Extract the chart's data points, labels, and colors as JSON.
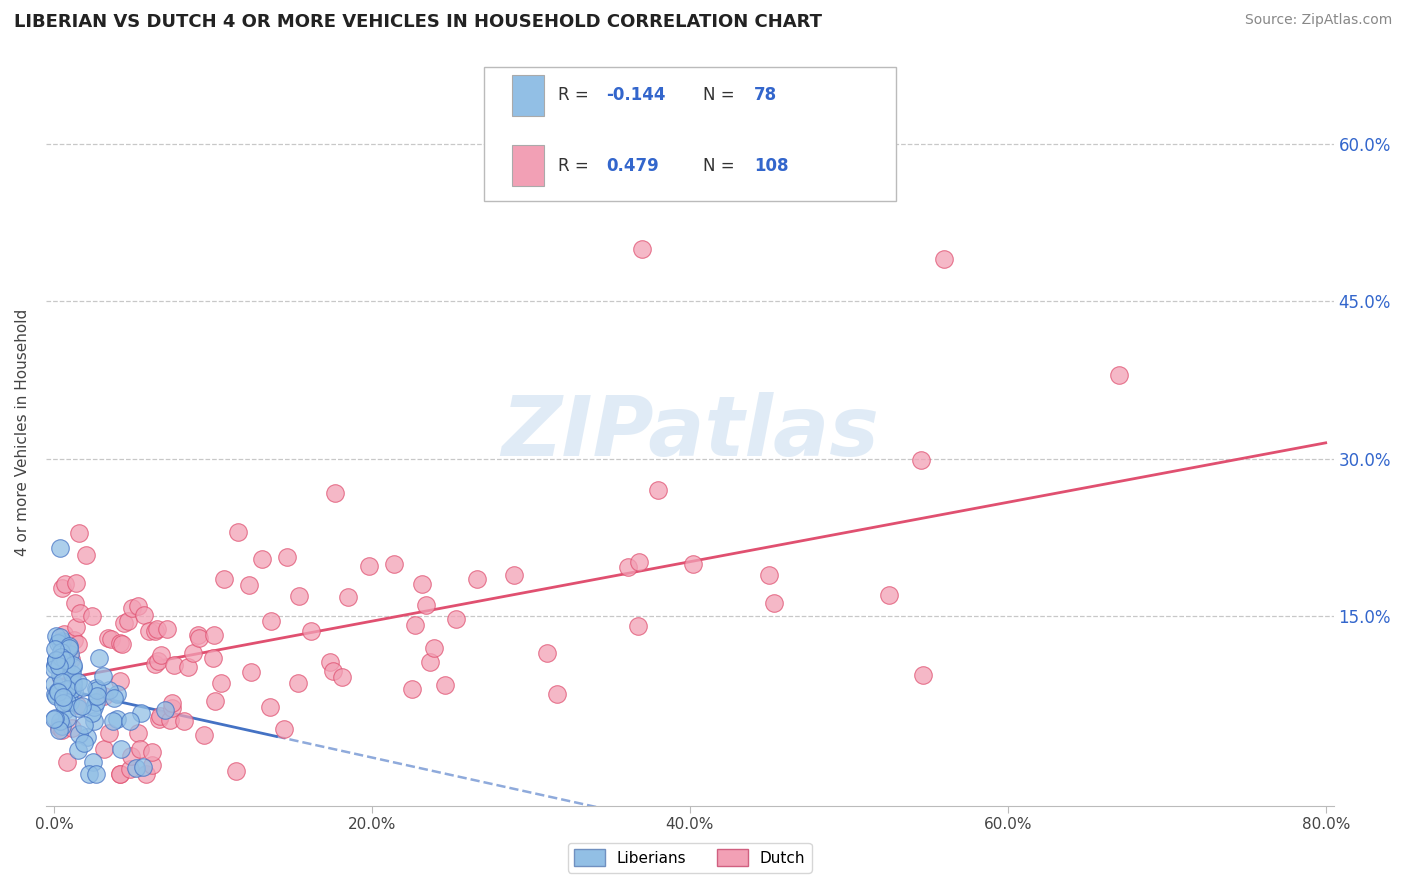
{
  "title": "LIBERIAN VS DUTCH 4 OR MORE VEHICLES IN HOUSEHOLD CORRELATION CHART",
  "source": "Source: ZipAtlas.com",
  "ylabel": "4 or more Vehicles in Household",
  "ytick_vals": [
    0.15,
    0.3,
    0.45,
    0.6
  ],
  "ytick_labels": [
    "15.0%",
    "30.0%",
    "45.0%",
    "60.0%"
  ],
  "xtick_vals": [
    0.0,
    0.2,
    0.4,
    0.6,
    0.8
  ],
  "xtick_labels": [
    "0.0%",
    "20.0%",
    "40.0%",
    "60.0%",
    "80.0%"
  ],
  "legend_label1": "Liberians",
  "legend_label2": "Dutch",
  "R1": -0.144,
  "N1": 78,
  "R2": 0.479,
  "N2": 108,
  "color_liberian": "#92BFE5",
  "color_dutch": "#F2A0B5",
  "color_liberian_line": "#4472C4",
  "color_dutch_line": "#E05070",
  "watermark": "ZIPatlas",
  "xlim": [
    -0.005,
    0.805
  ],
  "ylim": [
    -0.03,
    0.68
  ]
}
